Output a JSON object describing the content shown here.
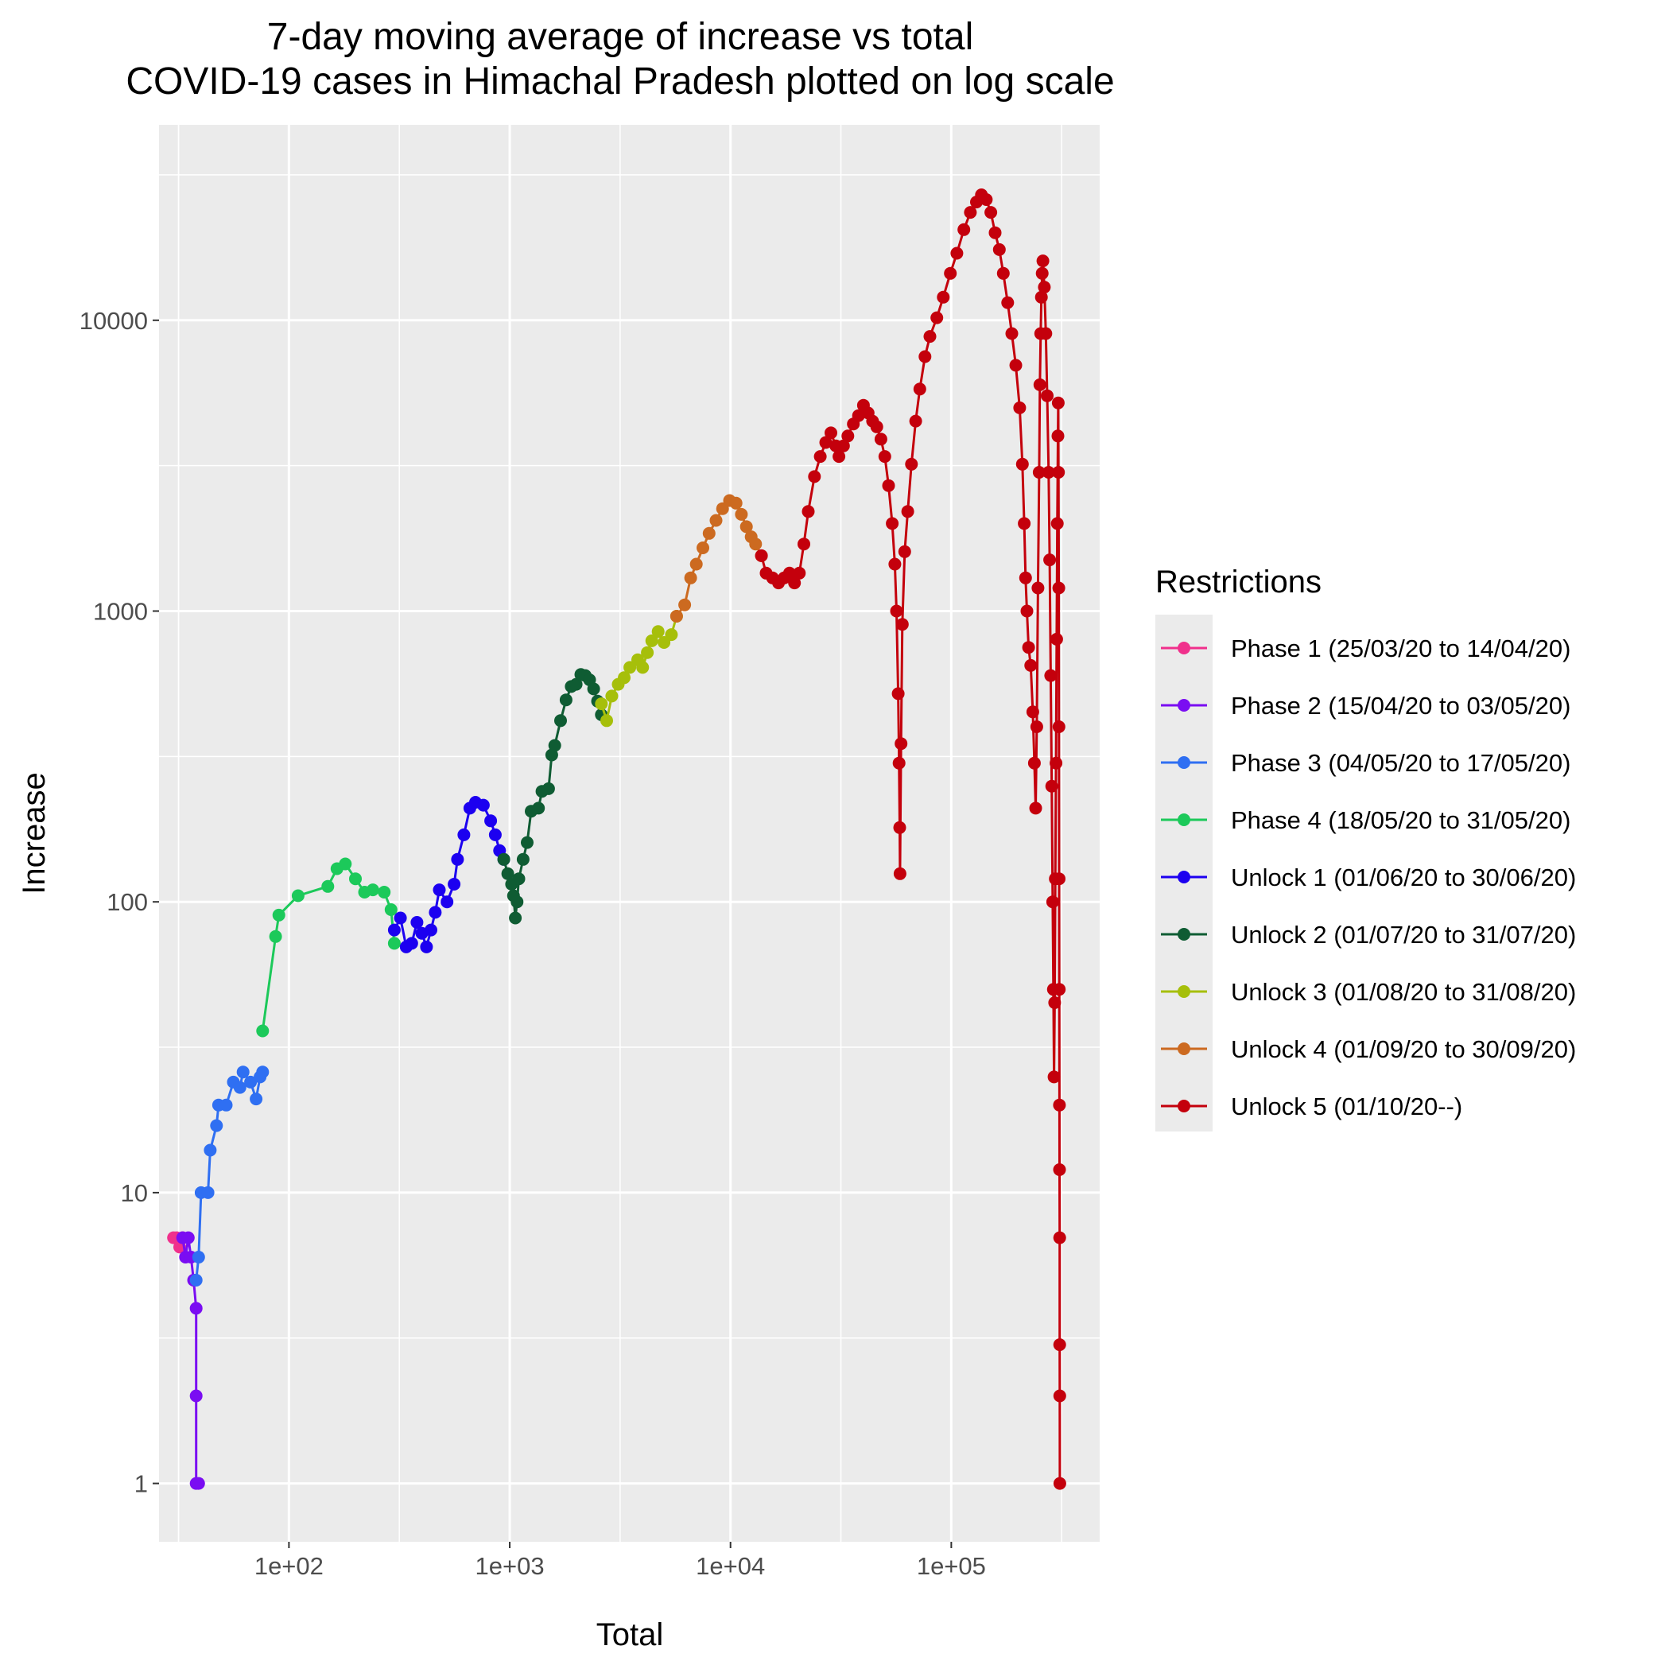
{
  "chart_data": {
    "type": "line",
    "title": [
      "7-day moving average of increase vs total",
      "COVID-19 cases in Himachal Pradesh plotted on log scale"
    ],
    "xlabel": "Total",
    "ylabel": "Increase",
    "x_scale": "log10",
    "y_scale": "log10",
    "xlim": [
      25.8,
      470000
    ],
    "ylim": [
      0.63,
      47000
    ],
    "x_ticks": [
      {
        "value": 100,
        "label": "1e+02"
      },
      {
        "value": 1000,
        "label": "1e+03"
      },
      {
        "value": 10000,
        "label": "1e+04"
      },
      {
        "value": 100000,
        "label": "1e+05"
      }
    ],
    "y_ticks": [
      {
        "value": 1,
        "label": "1"
      },
      {
        "value": 10,
        "label": "10"
      },
      {
        "value": 100,
        "label": "100"
      },
      {
        "value": 1000,
        "label": "1000"
      },
      {
        "value": 10000,
        "label": "10000"
      }
    ],
    "grid": true,
    "legend_title": "Restrictions",
    "legend_position": "right",
    "series": [
      {
        "name": "Phase 1 (25/03/20 to 14/04/20)",
        "color": "#F0308C",
        "points": [
          [
            30,
            7
          ],
          [
            31,
            7
          ],
          [
            32,
            6.5
          ],
          [
            33,
            7
          ]
        ]
      },
      {
        "name": "Phase 2 (15/04/20 to 03/05/20)",
        "color": "#7A0DF2",
        "points": [
          [
            33,
            7
          ],
          [
            34,
            6
          ],
          [
            35,
            7
          ],
          [
            36,
            6
          ],
          [
            37,
            5
          ],
          [
            38,
            4
          ],
          [
            38,
            2
          ],
          [
            38,
            1
          ],
          [
            39,
            1
          ]
        ]
      },
      {
        "name": "Phase 3 (04/05/20 to 17/05/20)",
        "color": "#2F6FF2",
        "points": [
          [
            38,
            5
          ],
          [
            39,
            6
          ],
          [
            40,
            10
          ],
          [
            43,
            10
          ],
          [
            44,
            14
          ],
          [
            47,
            17
          ],
          [
            48,
            20
          ],
          [
            52,
            20
          ],
          [
            56,
            24
          ],
          [
            60,
            23
          ],
          [
            62,
            26
          ],
          [
            67,
            24
          ],
          [
            71,
            21
          ],
          [
            74,
            25
          ],
          [
            76,
            26
          ]
        ]
      },
      {
        "name": "Phase 4 (18/05/20 to 31/05/20)",
        "color": "#1CC95A",
        "points": [
          [
            76,
            36
          ],
          [
            87,
            76
          ],
          [
            90,
            90
          ],
          [
            110,
            105
          ],
          [
            150,
            113
          ],
          [
            165,
            130
          ],
          [
            180,
            135
          ],
          [
            200,
            120
          ],
          [
            220,
            108
          ],
          [
            240,
            110
          ],
          [
            270,
            108
          ],
          [
            290,
            94
          ],
          [
            300,
            72
          ]
        ]
      },
      {
        "name": "Unlock 1 (01/06/20 to 30/06/20)",
        "color": "#1C00F0",
        "points": [
          [
            300,
            80
          ],
          [
            320,
            88
          ],
          [
            340,
            70
          ],
          [
            360,
            72
          ],
          [
            380,
            85
          ],
          [
            400,
            78
          ],
          [
            420,
            70
          ],
          [
            440,
            80
          ],
          [
            460,
            92
          ],
          [
            480,
            110
          ],
          [
            520,
            100
          ],
          [
            560,
            115
          ],
          [
            580,
            140
          ],
          [
            620,
            170
          ],
          [
            660,
            210
          ],
          [
            700,
            220
          ],
          [
            760,
            215
          ],
          [
            820,
            190
          ],
          [
            860,
            170
          ],
          [
            900,
            150
          ],
          [
            940,
            140
          ]
        ]
      },
      {
        "name": "Unlock 2 (01/07/20 to 31/07/20)",
        "color": "#0F5C33",
        "points": [
          [
            940,
            140
          ],
          [
            980,
            125
          ],
          [
            1020,
            115
          ],
          [
            1040,
            105
          ],
          [
            1060,
            88
          ],
          [
            1080,
            100
          ],
          [
            1100,
            120
          ],
          [
            1150,
            140
          ],
          [
            1200,
            160
          ],
          [
            1250,
            205
          ],
          [
            1350,
            210
          ],
          [
            1400,
            240
          ],
          [
            1500,
            245
          ],
          [
            1550,
            320
          ],
          [
            1600,
            345
          ],
          [
            1700,
            420
          ],
          [
            1800,
            495
          ],
          [
            1900,
            550
          ],
          [
            2000,
            560
          ],
          [
            2100,
            605
          ],
          [
            2200,
            600
          ],
          [
            2300,
            580
          ],
          [
            2400,
            540
          ],
          [
            2500,
            490
          ],
          [
            2600,
            440
          ]
        ]
      },
      {
        "name": "Unlock 3 (01/08/20 to 31/08/20)",
        "color": "#A6BF0A",
        "points": [
          [
            2600,
            480
          ],
          [
            2750,
            420
          ],
          [
            2900,
            510
          ],
          [
            3100,
            560
          ],
          [
            3300,
            590
          ],
          [
            3500,
            640
          ],
          [
            3800,
            680
          ],
          [
            4000,
            640
          ],
          [
            4200,
            720
          ],
          [
            4400,
            790
          ],
          [
            4700,
            850
          ],
          [
            5000,
            780
          ],
          [
            5400,
            830
          ],
          [
            5700,
            960
          ]
        ]
      },
      {
        "name": "Unlock 4 (01/09/20 to 30/09/20)",
        "color": "#CC6A20",
        "points": [
          [
            5700,
            960
          ],
          [
            6200,
            1050
          ],
          [
            6600,
            1300
          ],
          [
            7000,
            1450
          ],
          [
            7500,
            1650
          ],
          [
            8000,
            1850
          ],
          [
            8600,
            2050
          ],
          [
            9200,
            2250
          ],
          [
            9900,
            2400
          ],
          [
            10600,
            2350
          ],
          [
            11200,
            2150
          ],
          [
            11800,
            1950
          ],
          [
            12400,
            1800
          ],
          [
            13000,
            1700
          ],
          [
            13800,
            1550
          ]
        ]
      },
      {
        "name": "Unlock 5 (01/10/20--)",
        "color": "#C4000C",
        "points": [
          [
            13800,
            1550
          ],
          [
            14500,
            1350
          ],
          [
            15500,
            1300
          ],
          [
            16500,
            1250
          ],
          [
            17500,
            1300
          ],
          [
            18500,
            1350
          ],
          [
            19500,
            1250
          ],
          [
            20500,
            1350
          ],
          [
            21500,
            1700
          ],
          [
            22500,
            2200
          ],
          [
            24000,
            2900
          ],
          [
            25500,
            3400
          ],
          [
            27000,
            3800
          ],
          [
            28500,
            4100
          ],
          [
            30000,
            3700
          ],
          [
            31000,
            3400
          ],
          [
            32500,
            3700
          ],
          [
            34000,
            4000
          ],
          [
            36000,
            4400
          ],
          [
            38000,
            4700
          ],
          [
            40000,
            5100
          ],
          [
            42000,
            4800
          ],
          [
            44000,
            4500
          ],
          [
            46000,
            4300
          ],
          [
            48000,
            3900
          ],
          [
            50000,
            3400
          ],
          [
            52000,
            2700
          ],
          [
            54000,
            2000
          ],
          [
            55500,
            1450
          ],
          [
            56500,
            1000
          ],
          [
            57500,
            520
          ],
          [
            58000,
            300
          ],
          [
            58400,
            180
          ],
          [
            58600,
            125
          ],
          [
            59200,
            350
          ],
          [
            60000,
            900
          ],
          [
            61500,
            1600
          ],
          [
            63500,
            2200
          ],
          [
            66000,
            3200
          ],
          [
            69000,
            4500
          ],
          [
            72000,
            5800
          ],
          [
            76000,
            7500
          ],
          [
            80000,
            8800
          ],
          [
            86000,
            10200
          ],
          [
            92000,
            12000
          ],
          [
            99000,
            14500
          ],
          [
            106000,
            17000
          ],
          [
            114000,
            20500
          ],
          [
            122000,
            23500
          ],
          [
            130000,
            25500
          ],
          [
            137000,
            27000
          ],
          [
            144000,
            26000
          ],
          [
            151000,
            23500
          ],
          [
            158000,
            20000
          ],
          [
            165000,
            17500
          ],
          [
            172000,
            14500
          ],
          [
            180000,
            11500
          ],
          [
            188000,
            9000
          ],
          [
            196000,
            7000
          ],
          [
            204000,
            5000
          ],
          [
            210000,
            3200
          ],
          [
            214000,
            2000
          ],
          [
            217000,
            1300
          ],
          [
            220000,
            1000
          ],
          [
            224000,
            750
          ],
          [
            229000,
            650
          ],
          [
            234000,
            450
          ],
          [
            238000,
            300
          ],
          [
            241000,
            210
          ],
          [
            244000,
            400
          ],
          [
            247000,
            1200
          ],
          [
            250000,
            3000
          ],
          [
            252000,
            6000
          ],
          [
            254000,
            9000
          ],
          [
            256000,
            12000
          ],
          [
            258000,
            14500
          ],
          [
            260000,
            16000
          ],
          [
            264000,
            13000
          ],
          [
            268000,
            9000
          ],
          [
            272000,
            5500
          ],
          [
            276000,
            3000
          ],
          [
            279000,
            1500
          ],
          [
            282000,
            600
          ],
          [
            285000,
            250
          ],
          [
            288000,
            100
          ],
          [
            290000,
            50
          ],
          [
            292000,
            25
          ],
          [
            294000,
            45
          ],
          [
            296000,
            120
          ],
          [
            298000,
            300
          ],
          [
            300000,
            800
          ],
          [
            302000,
            2000
          ],
          [
            304000,
            4000
          ],
          [
            305000,
            5200
          ],
          [
            306000,
            3000
          ],
          [
            307000,
            1200
          ],
          [
            307500,
            400
          ],
          [
            308000,
            120
          ],
          [
            308500,
            50
          ],
          [
            309000,
            20
          ],
          [
            309300,
            12
          ],
          [
            309600,
            7
          ],
          [
            309800,
            3
          ],
          [
            310000,
            2
          ],
          [
            310200,
            1
          ]
        ]
      }
    ]
  }
}
